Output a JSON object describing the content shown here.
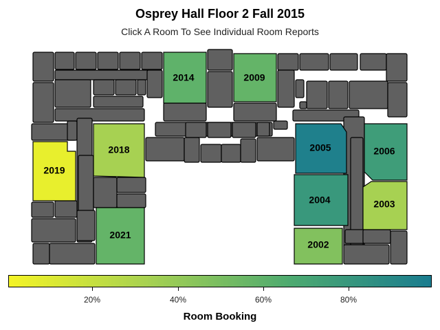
{
  "header": {
    "title": "Osprey Hall Floor 2 Fall 2015",
    "subtitle": "Click A Room To See Individual Room Reports"
  },
  "colors": {
    "structure_fill": "#606060",
    "structure_stroke": "#000000",
    "scale": [
      "#f4f426",
      "#a6d152",
      "#4daa70",
      "#1a7c8f"
    ]
  },
  "rooms": [
    {
      "id": "2014",
      "label": "2014",
      "booking": 0.6
    },
    {
      "id": "2009",
      "label": "2009",
      "booking": 0.58
    },
    {
      "id": "2018",
      "label": "2018",
      "booking": 0.33
    },
    {
      "id": "2019",
      "label": "2019",
      "booking": 0.05
    },
    {
      "id": "2005",
      "label": "2005",
      "booking": 0.97
    },
    {
      "id": "2006",
      "label": "2006",
      "booking": 0.76
    },
    {
      "id": "2004",
      "label": "2004",
      "booking": 0.8
    },
    {
      "id": "2003",
      "label": "2003",
      "booking": 0.33
    },
    {
      "id": "2021",
      "label": "2021",
      "booking": 0.58
    },
    {
      "id": "2002",
      "label": "2002",
      "booking": 0.47
    }
  ],
  "legend": {
    "title": "Room Booking",
    "ticks": [
      "20%",
      "40%",
      "60%",
      "80%"
    ]
  }
}
